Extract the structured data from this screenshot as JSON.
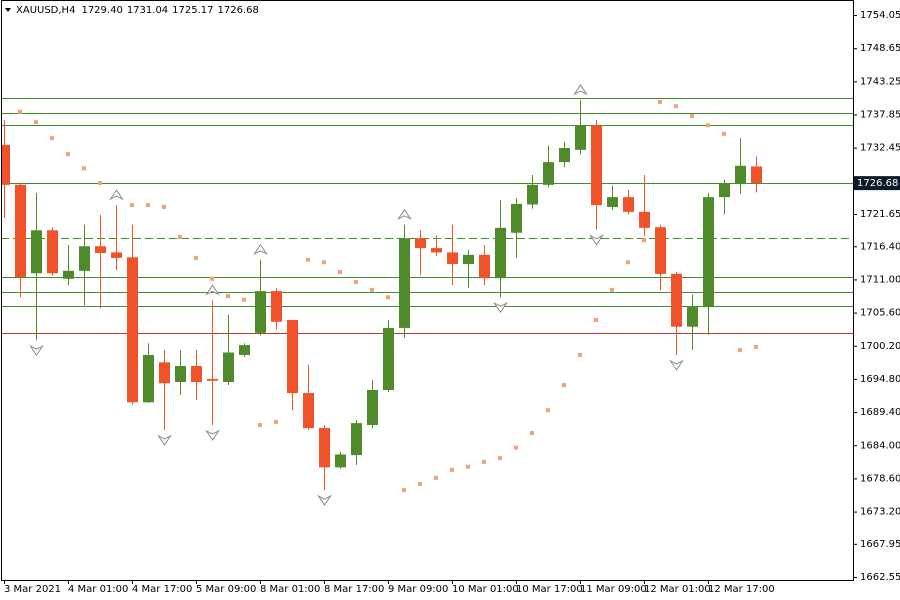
{
  "chart_data": {
    "type": "candlestick",
    "title": "XAUUSD,H4",
    "header_values": [
      "1729.40",
      "1731.04",
      "1725.17",
      "1726.68"
    ],
    "categories": [
      "3 Mar 2021",
      null,
      null,
      null,
      "4 Mar 01:00",
      null,
      null,
      null,
      "4 Mar 17:00",
      null,
      null,
      null,
      "5 Mar 09:00",
      null,
      null,
      null,
      "8 Mar 01:00",
      null,
      null,
      null,
      "8 Mar 17:00",
      null,
      null,
      null,
      "9 Mar 09:00",
      null,
      null,
      null,
      "10 Mar 01:00",
      null,
      null,
      null,
      "10 Mar 17:00",
      null,
      null,
      null,
      "11 Mar 09:00",
      null,
      null,
      null,
      "12 Mar 01:00",
      null,
      null,
      null,
      "12 Mar 17:00",
      null,
      null,
      null
    ],
    "open": [
      1732.9,
      1726.4,
      1712.0,
      1719.0,
      1711.1,
      1712.4,
      1716.4,
      1715.4,
      1714.6,
      1691.0,
      1697.5,
      1694.3,
      1696.9,
      1694.8,
      1694.3,
      1698.7,
      1702.3,
      1709.1,
      1704.4,
      1692.5,
      1686.8,
      1680.4,
      1682.4,
      1687.3,
      1693.0,
      1703.1,
      1717.7,
      1716.1,
      1715.4,
      1713.5,
      1715.0,
      1711.2,
      1718.6,
      1723.2,
      1726.4,
      1730.1,
      1732.1,
      1736.1,
      1722.8,
      1724.4,
      1722.0,
      1719.5,
      1711.9,
      1703.3,
      1706.5,
      1724.4,
      1726.7,
      1729.4
    ],
    "high": [
      1737.0,
      1726.6,
      1725.1,
      1719.5,
      1716.6,
      1719.9,
      1721.5,
      1723.1,
      1719.9,
      1700.6,
      1699.5,
      1699.5,
      1699.5,
      1707.6,
      1705.2,
      1700.6,
      1714.2,
      1709.6,
      1704.4,
      1697.1,
      1687.3,
      1682.9,
      1688.1,
      1694.6,
      1704.4,
      1719.9,
      1719.0,
      1718.2,
      1719.9,
      1715.8,
      1716.6,
      1723.9,
      1724.2,
      1728.0,
      1732.8,
      1733.4,
      1740.2,
      1737.0,
      1726.3,
      1725.6,
      1728.0,
      1719.9,
      1712.2,
      1708.5,
      1725.1,
      1727.2,
      1734.0,
      1731.04
    ],
    "low": [
      1721.0,
      1708.1,
      1701.1,
      1711.6,
      1710.1,
      1706.8,
      1706.3,
      1712.5,
      1690.6,
      1690.9,
      1686.5,
      1692.2,
      1691.4,
      1687.3,
      1693.8,
      1698.4,
      1701.9,
      1702.8,
      1689.7,
      1686.5,
      1676.7,
      1680.2,
      1680.8,
      1686.8,
      1692.7,
      1701.5,
      1711.7,
      1714.8,
      1710.1,
      1709.6,
      1710.1,
      1708.1,
      1714.5,
      1722.5,
      1726.0,
      1729.3,
      1731.3,
      1719.1,
      1722.3,
      1721.6,
      1718.1,
      1709.2,
      1698.7,
      1699.5,
      1702.0,
      1721.6,
      1724.9,
      1725.17
    ],
    "close": [
      1726.4,
      1711.4,
      1719.0,
      1712.0,
      1712.4,
      1716.4,
      1715.3,
      1714.5,
      1691.0,
      1698.7,
      1694.1,
      1696.9,
      1694.3,
      1694.5,
      1699.1,
      1700.3,
      1709.1,
      1704.1,
      1692.5,
      1686.8,
      1680.4,
      1682.5,
      1687.6,
      1693.0,
      1703.1,
      1717.7,
      1716.1,
      1715.4,
      1713.5,
      1715.0,
      1711.2,
      1719.4,
      1723.3,
      1726.4,
      1730.1,
      1732.4,
      1736.1,
      1723.1,
      1724.4,
      1722.0,
      1719.4,
      1711.9,
      1703.3,
      1706.5,
      1724.4,
      1726.7,
      1729.5,
      1726.68
    ],
    "up_color": "#4f8a2b",
    "down_color": "#f0522a",
    "sar": [
      null,
      1738.3,
      1736.6,
      1734.0,
      1731.4,
      1729.1,
      1726.7,
      null,
      1723.1,
      1723.1,
      1722.8,
      1717.9,
      1714.5,
      1711.1,
      1708.3,
      1707.7,
      1687.3,
      1687.8,
      null,
      1714.2,
      1713.8,
      1712.2,
      1710.6,
      1709.3,
      1708.1,
      1676.7,
      1677.7,
      1678.7,
      1680.0,
      1680.5,
      1681.3,
      1681.9,
      1683.6,
      1686.0,
      1689.7,
      1693.8,
      1698.7,
      1704.4,
      1709.3,
      1713.8,
      1717.4,
      1739.9,
      1739.2,
      1737.6,
      1736.1,
      1734.7,
      1699.5,
      1700.0
    ],
    "sar_color": "#f4a07a",
    "fractals_up": [
      null,
      null,
      null,
      null,
      null,
      null,
      null,
      1723.1,
      null,
      null,
      null,
      null,
      null,
      1707.6,
      null,
      null,
      1714.2,
      null,
      null,
      null,
      null,
      null,
      null,
      null,
      null,
      1719.9,
      null,
      null,
      null,
      null,
      null,
      null,
      null,
      null,
      null,
      null,
      1740.2,
      null,
      null,
      null,
      null,
      null,
      null,
      null,
      null,
      null,
      null,
      null
    ],
    "fractals_down": [
      null,
      null,
      1701.1,
      null,
      null,
      null,
      null,
      null,
      null,
      null,
      1686.5,
      null,
      null,
      1687.3,
      null,
      null,
      null,
      null,
      null,
      null,
      1676.7,
      null,
      null,
      null,
      null,
      null,
      null,
      null,
      null,
      null,
      null,
      1708.1,
      null,
      null,
      null,
      null,
      null,
      1719.1,
      null,
      null,
      null,
      null,
      1698.7,
      null,
      null,
      null,
      null,
      null
    ],
    "fractal_color": "#8a8a8a",
    "levels": [
      {
        "value": 1740.54,
        "color": "#3f8f2a",
        "dashed": false
      },
      {
        "value": 1738.09,
        "color": "#3f8f2a",
        "dashed": false
      },
      {
        "value": 1736.14,
        "color": "#3f8f2a",
        "dashed": false
      },
      {
        "value": 1726.68,
        "color": "#3f8f2a",
        "dashed": false
      },
      {
        "value": 1717.74,
        "color": "#3f8f2a",
        "dashed": true
      },
      {
        "value": 1711.39,
        "color": "#3f8f2a",
        "dashed": false
      },
      {
        "value": 1708.95,
        "color": "#3f8f2a",
        "dashed": false
      },
      {
        "value": 1706.67,
        "color": "#3f8f2a",
        "dashed": false
      },
      {
        "value": 1702.27,
        "color": "#c0392b",
        "dashed": false
      }
    ],
    "current_price": 1726.68,
    "ylim": [
      1662.06,
      1756.17
    ],
    "yticks": [
      1754.05,
      1748.65,
      1743.25,
      1737.85,
      1732.45,
      1721.65,
      {
        "value": 1716.4,
        "label": "1716.40"
      },
      {
        "value": 1711,
        "label": "1711.00"
      },
      {
        "value": 1705.6,
        "label": "1705.60"
      },
      {
        "value": 1700.2,
        "label": "1700.20"
      },
      {
        "value": 1694.8,
        "label": "1694.80"
      },
      {
        "value": 1689.4,
        "label": "1689.40"
      },
      {
        "value": 1684,
        "label": "1684.00"
      },
      {
        "value": 1678.6,
        "label": "1678.60"
      },
      {
        "value": 1673.2,
        "label": "1673.20"
      },
      1667.95,
      1662.55
    ]
  }
}
